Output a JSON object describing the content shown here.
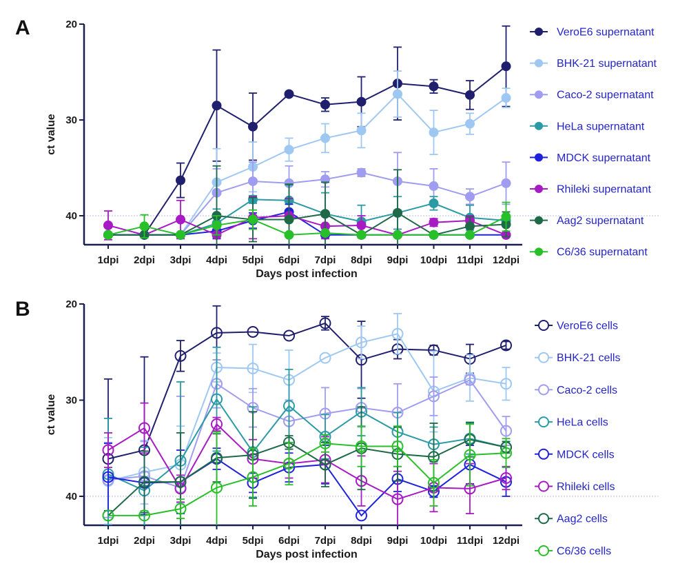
{
  "chart_data": [
    {
      "panel_label": "A",
      "type": "line",
      "xlabel": "Days post infection",
      "ylabel": "ct value",
      "categories": [
        "1dpi",
        "2dpi",
        "3dpi",
        "4dpi",
        "5dpi",
        "6dpi",
        "7dpi",
        "8dpi",
        "9dpi",
        "10dpi",
        "11dpi",
        "12dpi"
      ],
      "y_ticks": [
        "20",
        "30",
        "40"
      ],
      "ylim": [
        20,
        43
      ],
      "y_inverted": true,
      "reference_line": 40,
      "marker": "filled-circle",
      "legend_placement": "right",
      "series": [
        {
          "name": "VeroE6 supernatant",
          "color": "#1f1f6e",
          "values": [
            42,
            42,
            36.3,
            28.5,
            30.7,
            27.3,
            28.4,
            28.1,
            26.2,
            26.5,
            27.4,
            24.4
          ],
          "errors": [
            0,
            0,
            1.8,
            5.8,
            3.5,
            0,
            0.7,
            2.6,
            3.8,
            0.7,
            1.5,
            4.2
          ]
        },
        {
          "name": "BHK-21 supernatant",
          "color": "#9ec8f2",
          "values": [
            42,
            42,
            42,
            36.5,
            34.9,
            33.1,
            31.9,
            31.1,
            27.3,
            31.3,
            30.4,
            27.7
          ],
          "errors": [
            0,
            0,
            0,
            3.5,
            2.6,
            1.2,
            1.5,
            1.8,
            2.4,
            2.3,
            1.1,
            1
          ]
        },
        {
          "name": "Caco-2 supernatant",
          "color": "#a09cf0",
          "values": [
            42,
            42,
            42,
            37.6,
            36.4,
            36.6,
            36.2,
            35.5,
            36.4,
            36.9,
            38,
            36.6
          ],
          "errors": [
            0,
            0,
            0,
            2.5,
            2,
            1.8,
            0.8,
            0.4,
            3,
            1.8,
            0.8,
            2.2
          ]
        },
        {
          "name": "HeLa supernatant",
          "color": "#2a9aa5",
          "values": [
            42,
            42,
            42,
            40.8,
            38.3,
            38.4,
            39.8,
            40.6,
            39.7,
            38.7,
            40.2,
            40.5
          ],
          "errors": [
            0,
            0,
            0,
            1.5,
            0.4,
            1.6,
            2.2,
            1.7,
            1.7,
            0.7,
            1.3,
            0.5
          ]
        },
        {
          "name": "MDCK supernatant",
          "color": "#1e22dc",
          "values": [
            42,
            42,
            42,
            41.6,
            40.5,
            39.6,
            42,
            42,
            42,
            42,
            42,
            42
          ],
          "errors": [
            0,
            0,
            0,
            0.8,
            0.8,
            0.8,
            0,
            0,
            0,
            0,
            0,
            0
          ]
        },
        {
          "name": "Rhileki supernatant",
          "color": "#a81ac3",
          "values": [
            41,
            42,
            40.4,
            42,
            40.2,
            40,
            41.1,
            41,
            42,
            40.7,
            40.5,
            42
          ],
          "errors": [
            1.5,
            0,
            2,
            0,
            2.2,
            1.8,
            1.3,
            1,
            0,
            0.4,
            0.5,
            0
          ]
        },
        {
          "name": "Aag2 supernatant",
          "color": "#1d6948",
          "values": [
            42,
            42,
            42,
            40,
            40.4,
            40.4,
            39.8,
            42,
            39.7,
            42,
            41.1,
            40.9
          ],
          "errors": [
            0,
            0,
            0,
            5.2,
            2.3,
            3.7,
            3.3,
            0,
            4.5,
            0,
            1,
            1.3
          ]
        },
        {
          "name": "C6/36 supernatant",
          "color": "#28c028",
          "values": [
            42,
            41.1,
            42,
            41,
            40.4,
            42,
            41.8,
            42,
            42,
            42,
            42,
            40.1
          ],
          "errors": [
            0,
            1.2,
            0,
            1,
            1,
            0,
            0,
            0,
            0,
            0,
            0,
            1.5
          ]
        }
      ]
    },
    {
      "panel_label": "B",
      "type": "line",
      "xlabel": "Days post infection",
      "ylabel": "ct value",
      "categories": [
        "1dpi",
        "2dpi",
        "3dpi",
        "4dpi",
        "5dpi",
        "6dpi",
        "7dpi",
        "8dpi",
        "9dpi",
        "10dpi",
        "11dpi",
        "12dpi"
      ],
      "y_ticks": [
        "20",
        "30",
        "40"
      ],
      "ylim": [
        20,
        43
      ],
      "y_inverted": true,
      "reference_line": 40,
      "marker": "open-circle",
      "legend_placement": "right",
      "series": [
        {
          "name": "VeroE6 cells",
          "color": "#1f1f6e",
          "values": [
            36.1,
            35.2,
            25.4,
            23,
            22.9,
            23.3,
            22,
            25.8,
            24.7,
            24.8,
            25.7,
            24.3
          ],
          "errors": [
            8.3,
            9.7,
            1.6,
            2.8,
            0,
            0,
            0.7,
            4,
            1,
            0.5,
            1.5,
            0.4
          ]
        },
        {
          "name": "BHK-21 cells",
          "color": "#9ec8f2",
          "values": [
            38.4,
            37.5,
            36.7,
            26.6,
            26.7,
            27.9,
            25.6,
            24,
            23.1,
            29.1,
            27.7,
            28.3
          ],
          "errors": [
            4.5,
            3.3,
            4,
            1.5,
            2.5,
            3.1,
            0,
            1.7,
            2.1,
            4.2,
            2.4,
            1.7
          ]
        },
        {
          "name": "Caco-2 cells",
          "color": "#a09cf0",
          "values": [
            38.3,
            37.9,
            39.1,
            28.3,
            30.8,
            32.2,
            31.4,
            30.8,
            31.3,
            29.6,
            27.9,
            33.2
          ],
          "errors": [
            3.9,
            3.6,
            9.5,
            2.5,
            2,
            2.2,
            2.7,
            2,
            3,
            2,
            0.5,
            1.5
          ]
        },
        {
          "name": "HeLa cells",
          "color": "#2a9aa5",
          "values": [
            37.7,
            39.4,
            36.3,
            29.9,
            35.4,
            30.6,
            33.8,
            31.2,
            33.3,
            34.6,
            34,
            34.9
          ],
          "errors": [
            5.8,
            4.5,
            8.2,
            5.4,
            4.7,
            3.8,
            2.3,
            2.5,
            2,
            1.8,
            1.6,
            0.6
          ]
        },
        {
          "name": "MDCK cells",
          "color": "#1e22dc",
          "values": [
            38,
            38.6,
            38.5,
            36.1,
            38.6,
            37,
            36.7,
            42,
            38.2,
            39.5,
            36.7,
            38.5
          ],
          "errors": [
            3.5,
            3.3,
            3.3,
            1.1,
            1,
            1.5,
            2,
            0,
            1.3,
            0.6,
            2,
            1.5
          ]
        },
        {
          "name": "Rhileki cells",
          "color": "#a81ac3",
          "values": [
            35.2,
            32.9,
            39.2,
            32.5,
            36.1,
            36.6,
            36.2,
            38.4,
            40.3,
            39.1,
            39.2,
            38.1
          ],
          "errors": [
            1.8,
            2.6,
            1.4,
            0.7,
            2,
            1.5,
            2.4,
            2.6,
            2.9,
            2.5,
            2.6,
            1.2
          ]
        },
        {
          "name": "Aag2 cells",
          "color": "#1d6948",
          "values": [
            42,
            38.5,
            38.5,
            36,
            35.7,
            34.4,
            36.7,
            35,
            35.6,
            35.9,
            34.1,
            34.9
          ],
          "errors": [
            0,
            3.2,
            5.1,
            2.5,
            4.5,
            0.7,
            2.3,
            4.3,
            2.8,
            3.5,
            1.8,
            0.6
          ]
        },
        {
          "name": "C6/36 cells",
          "color": "#28c028",
          "values": [
            42,
            42,
            41.3,
            39.1,
            38,
            36.6,
            34.5,
            34.8,
            34.8,
            38.6,
            35.7,
            35.5
          ],
          "errors": [
            0,
            0,
            1,
            5.8,
            3,
            2.2,
            0.9,
            2.1,
            2.1,
            2.4,
            3.2,
            1.5
          ]
        }
      ]
    }
  ]
}
